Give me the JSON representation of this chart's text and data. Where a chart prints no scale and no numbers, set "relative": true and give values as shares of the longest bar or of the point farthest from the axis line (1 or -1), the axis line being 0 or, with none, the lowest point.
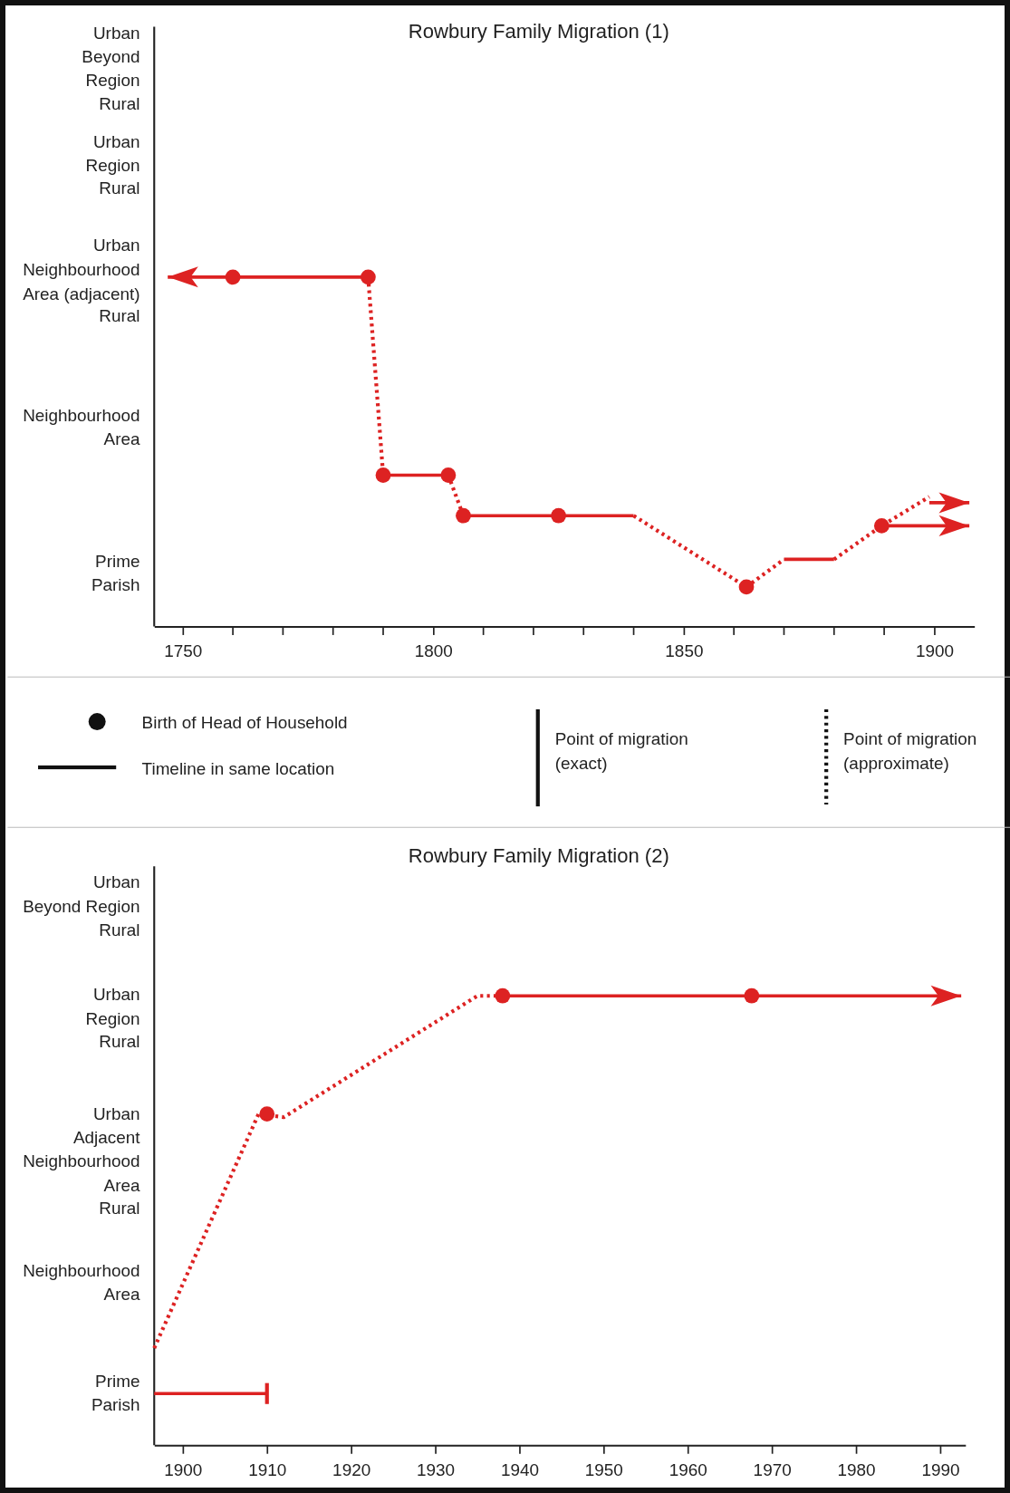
{
  "chart_data": [
    {
      "type": "line",
      "title": "Rowbury Family Migration (1)",
      "relative": true,
      "xlim": [
        1744.3,
        1908
      ],
      "xticks": [
        1750,
        1800,
        1850,
        1900
      ],
      "annotations": [
        "Prime\nParish",
        "Neighbourhood\nArea",
        "Rural",
        "Neighbourhood\nArea (adjacent)",
        "Urban",
        "Rural",
        "Region",
        "Urban",
        "Rural",
        "Beyond\nRegion",
        "Urban"
      ],
      "series": [
        {
          "type": "line",
          "line_style": "solid",
          "color": "#dd2222",
          "x": [
            1747,
            1787
          ],
          "values": [
            1,
            1
          ]
        },
        {
          "type": "line",
          "line_style": "solid",
          "color": "#dd2222",
          "x": [
            1790,
            1803
          ],
          "values": [
            0.433,
            0.433
          ]
        },
        {
          "type": "line",
          "line_style": "solid",
          "color": "#dd2222",
          "x": [
            1806,
            1840
          ],
          "values": [
            0.317,
            0.317
          ]
        },
        {
          "type": "line",
          "line_style": "solid",
          "color": "#dd2222",
          "x": [
            1870,
            1880
          ],
          "values": [
            0.192,
            0.192
          ]
        },
        {
          "type": "line",
          "line_style": "solid",
          "color": "#dd2222",
          "x": [
            1889.5,
            1907
          ],
          "values": [
            0.288,
            0.288
          ]
        },
        {
          "type": "line",
          "line_style": "solid",
          "color": "#dd2222",
          "x": [
            1899,
            1907
          ],
          "values": [
            0.354,
            0.354
          ]
        },
        {
          "type": "line",
          "line_style": "dotted",
          "color": "#dd2222",
          "x": [
            1787,
            1790
          ],
          "values": [
            1,
            0.433
          ]
        },
        {
          "type": "line",
          "line_style": "dotted",
          "color": "#dd2222",
          "x": [
            1803,
            1806
          ],
          "values": [
            0.433,
            0.317
          ]
        },
        {
          "type": "line",
          "line_style": "dotted",
          "color": "#dd2222",
          "x": [
            1840,
            1862.5,
            1870
          ],
          "values": [
            0.317,
            0.113,
            0.192
          ]
        },
        {
          "type": "line",
          "line_style": "dotted",
          "color": "#dd2222",
          "x": [
            1880,
            1889.5,
            1899
          ],
          "values": [
            0.192,
            0.288,
            0.371
          ]
        },
        {
          "type": "scatter",
          "marker": "circle",
          "color": "#dd2222",
          "x": [
            1760,
            1787,
            1790,
            1803,
            1806,
            1825,
            1862.5,
            1889.5
          ],
          "values": [
            1,
            1,
            0.433,
            0.433,
            0.317,
            0.317,
            0.113,
            0.288
          ]
        }
      ]
    },
    {
      "type": "other",
      "annotations": [
        "Birth of Head of Household",
        "Timeline in same location",
        "Point of migration\n(exact)",
        "Point of migration\n(approximate)"
      ]
    },
    {
      "type": "line",
      "title": "Rowbury Family Migration (2)",
      "relative": true,
      "xlim": [
        1896.6,
        1993
      ],
      "xticks": [
        1900,
        1910,
        1920,
        1930,
        1940,
        1950,
        1960,
        1970,
        1980,
        1990
      ],
      "annotations": [
        "Prime\nParish",
        "Neighbourhood\nArea",
        "Rural",
        "Adjacent\nNeighbourhood\nArea",
        "Urban",
        "Rural",
        "Region",
        "Urban",
        "Rural",
        "Beyond Region",
        "Urban"
      ],
      "series": [
        {
          "type": "line",
          "line_style": "solid",
          "color": "#dd2222",
          "x": [
            1896.6,
            1910
          ],
          "values": [
            0.115,
            0.115
          ]
        },
        {
          "type": "line",
          "line_style": "solid",
          "color": "#dd2222",
          "x": [
            1938,
            1992.5
          ],
          "values": [
            1,
            1
          ]
        },
        {
          "type": "line",
          "line_style": "dotted",
          "color": "#dd2222",
          "x": [
            1896.6,
            1909,
            1912,
            1935,
            1938
          ],
          "values": [
            0.216,
            0.737,
            0.73,
            1,
            1
          ]
        },
        {
          "type": "scatter",
          "marker": "circle",
          "color": "#dd2222",
          "x": [
            1910,
            1938,
            1967.6
          ],
          "values": [
            0.737,
            1,
            1
          ]
        }
      ]
    }
  ]
}
